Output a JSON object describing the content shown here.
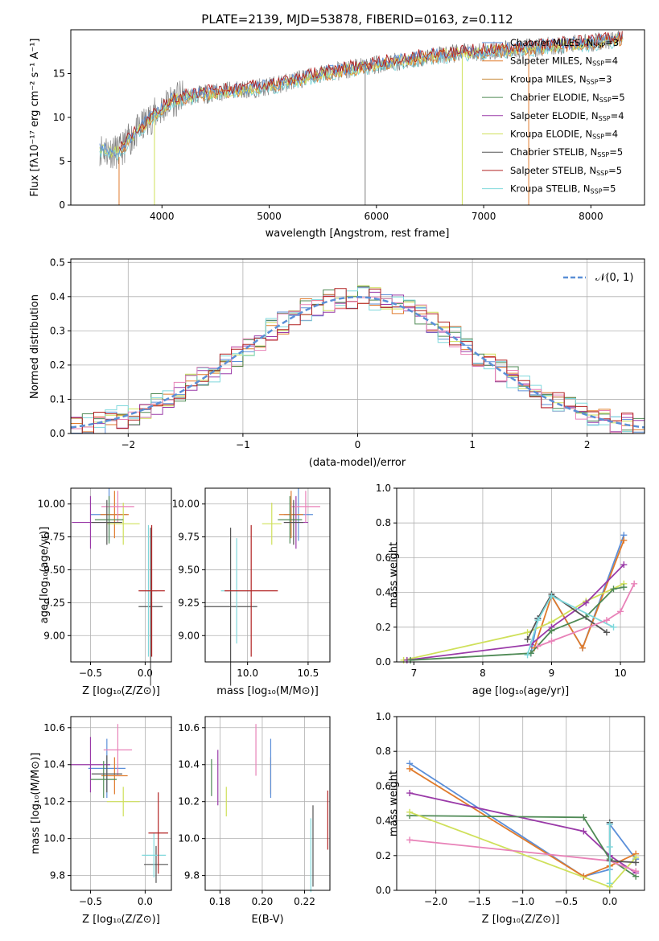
{
  "colors": {
    "chabrier_miles": "#5b8fd9",
    "salpeter_miles": "#e07b2c",
    "kroupa_miles": "#c88a3a",
    "chabrier_elodie": "#4f8a55",
    "salpeter_elodie": "#9a3aa8",
    "kroupa_elodie": "#cfe05a",
    "chabrier_stelib": "#555555",
    "salpeter_stelib": "#b22222",
    "kroupa_stelib": "#7fd8dc",
    "pink": "#e882b8",
    "data_spectrum": "#7f7f7f",
    "normal": "#5a8fd6",
    "grid": "#b0b0b0"
  },
  "chart_data": [
    {
      "type": "line",
      "title": "PLATE=2139, MJD=53878, FIBERID=0163, z=0.112",
      "xlabel": "wavelength [Angstrom, rest frame]",
      "ylabel": "Flux [fλ10⁻¹⁷ erg cm⁻² s⁻¹ A⁻¹]",
      "xlim": [
        3150,
        8500
      ],
      "ylim": [
        0,
        20
      ],
      "xticks": [
        "4000",
        "5000",
        "6000",
        "7000",
        "8000"
      ],
      "yticks": [
        "0",
        "5",
        "10",
        "15"
      ],
      "grid": false,
      "legend_position": "top-right",
      "legend": [
        {
          "label": "Chabrier MILES, N",
          "sub": "SSP",
          "tail": "=3",
          "key": "chabrier_miles"
        },
        {
          "label": "Salpeter MILES, N",
          "sub": "SSP",
          "tail": "=4",
          "key": "salpeter_miles"
        },
        {
          "label": "Kroupa MILES, N",
          "sub": "SSP",
          "tail": "=3",
          "key": "kroupa_miles"
        },
        {
          "label": "Chabrier ELODIE, N",
          "sub": "SSP",
          "tail": "=5",
          "key": "chabrier_elodie"
        },
        {
          "label": "Salpeter ELODIE, N",
          "sub": "SSP",
          "tail": "=4",
          "key": "salpeter_elodie"
        },
        {
          "label": "Kroupa ELODIE, N",
          "sub": "SSP",
          "tail": "=4",
          "key": "kroupa_elodie"
        },
        {
          "label": "Chabrier STELIB, N",
          "sub": "SSP",
          "tail": "=5",
          "key": "chabrier_stelib"
        },
        {
          "label": "Salpeter STELIB, N",
          "sub": "SSP",
          "tail": "=5",
          "key": "salpeter_stelib"
        },
        {
          "label": "Kroupa STELIB, N",
          "sub": "SSP",
          "tail": "=5",
          "key": "kroupa_stelib"
        }
      ],
      "continuum_anchors": [
        [
          3400,
          6.5
        ],
        [
          3600,
          6
        ],
        [
          3700,
          7.5
        ],
        [
          3900,
          10
        ],
        [
          4100,
          12
        ],
        [
          4300,
          12.5
        ],
        [
          4600,
          13
        ],
        [
          5000,
          13.5
        ],
        [
          5500,
          15
        ],
        [
          6000,
          16
        ],
        [
          6500,
          17
        ],
        [
          7000,
          17.5
        ],
        [
          7500,
          18
        ],
        [
          8000,
          18.5
        ],
        [
          8300,
          19
        ]
      ]
    },
    {
      "type": "line",
      "xlabel": "(data-model)/error",
      "ylabel": "Normed distribution",
      "xlim": [
        -2.5,
        2.5
      ],
      "ylim": [
        0,
        0.51
      ],
      "xticks": [
        "−2",
        "−1",
        "0",
        "1",
        "2"
      ],
      "yticks": [
        "0.0",
        "0.1",
        "0.2",
        "0.3",
        "0.4",
        "0.5"
      ],
      "grid": true,
      "legend_position": "top-right",
      "legend": [
        {
          "label": "𝒩(0, 1)",
          "key": "normal"
        }
      ],
      "bin_width": 0.1
    },
    {
      "type": "scatter",
      "xlabel": "Z [log₁₀(Z/Z⊙)]",
      "ylabel": "age  [log₁₀(age/yr)]",
      "xlim": [
        -0.68,
        0.24
      ],
      "ylim": [
        8.8,
        10.12
      ],
      "xticks": [
        "−0.5",
        "0.0"
      ],
      "yticks": [
        "9.00",
        "9.25",
        "9.50",
        "9.75",
        "10.00"
      ],
      "points": [
        {
          "key": "chabrier_miles",
          "x": -0.33,
          "y": 9.92,
          "ex": 0.17,
          "ey": 0.2
        },
        {
          "key": "salpeter_miles",
          "x": -0.28,
          "y": 9.92,
          "ex": 0.13,
          "ey": 0.18
        },
        {
          "key": "salpeter_elodie",
          "x": -0.5,
          "y": 9.86,
          "ex": 0.17,
          "ey": 0.2
        },
        {
          "key": "kroupa_elodie",
          "x": -0.2,
          "y": 9.85,
          "ex": 0.15,
          "ey": 0.16
        },
        {
          "key": "pink",
          "x": -0.25,
          "y": 9.98,
          "ex": 0.15,
          "ey": 0.12
        },
        {
          "key": "chabrier_elodie",
          "x": -0.33,
          "y": 9.88,
          "ex": 0.13,
          "ey": 0.18
        },
        {
          "key": "chabrier_stelib",
          "x": -0.35,
          "y": 9.86,
          "ex": 0.14,
          "ey": 0.17
        },
        {
          "key": "chabrier_stelib",
          "x": 0.05,
          "y": 9.22,
          "ex": 0.11,
          "ey": 0.6
        },
        {
          "key": "kroupa_stelib",
          "x": 0.03,
          "y": 9.34,
          "ex": 0.08,
          "ey": 0.5
        },
        {
          "key": "salpeter_stelib",
          "x": 0.06,
          "y": 9.34,
          "ex": 0.12,
          "ey": 0.5
        }
      ]
    },
    {
      "type": "scatter",
      "xlabel": "mass [log₁₀(M/M⊙)]",
      "ylabel": "",
      "xlim": [
        9.65,
        10.68
      ],
      "ylim": [
        8.8,
        10.12
      ],
      "xticks": [
        "10.0",
        "10.5"
      ],
      "yticks": [
        "9.00",
        "9.25",
        "9.50",
        "9.75",
        "10.00"
      ],
      "points": [
        {
          "key": "chabrier_miles",
          "x": 10.42,
          "y": 9.92,
          "ex": 0.12,
          "ey": 0.2
        },
        {
          "key": "salpeter_miles",
          "x": 10.36,
          "y": 9.92,
          "ex": 0.1,
          "ey": 0.18
        },
        {
          "key": "salpeter_elodie",
          "x": 10.4,
          "y": 9.86,
          "ex": 0.1,
          "ey": 0.2
        },
        {
          "key": "kroupa_elodie",
          "x": 10.2,
          "y": 9.85,
          "ex": 0.08,
          "ey": 0.16
        },
        {
          "key": "pink",
          "x": 10.48,
          "y": 9.98,
          "ex": 0.12,
          "ey": 0.12
        },
        {
          "key": "chabrier_elodie",
          "x": 10.35,
          "y": 9.88,
          "ex": 0.1,
          "ey": 0.18
        },
        {
          "key": "chabrier_stelib",
          "x": 10.38,
          "y": 9.86,
          "ex": 0.08,
          "ey": 0.17
        },
        {
          "key": "chabrier_stelib",
          "x": 9.86,
          "y": 9.22,
          "ex": 0.22,
          "ey": 0.6
        },
        {
          "key": "kroupa_stelib",
          "x": 9.91,
          "y": 9.34,
          "ex": 0.13,
          "ey": 0.4
        },
        {
          "key": "salpeter_stelib",
          "x": 10.03,
          "y": 9.34,
          "ex": 0.22,
          "ey": 0.5
        }
      ]
    },
    {
      "type": "line",
      "xlabel": "age  [log₁₀(age/yr)]",
      "ylabel": "mass weight",
      "xlim": [
        6.75,
        10.35
      ],
      "ylim": [
        0,
        1
      ],
      "xticks": [
        "7",
        "8",
        "9",
        "10"
      ],
      "yticks": [
        "0.0",
        "0.2",
        "0.4",
        "0.6",
        "0.8",
        "1.0"
      ],
      "grid": true,
      "series": [
        {
          "key": "chabrier_miles",
          "x": [
            8.7,
            8.8,
            9.0,
            9.45,
            10.05
          ],
          "y": [
            0.05,
            0.25,
            0.38,
            0.08,
            0.73
          ]
        },
        {
          "key": "salpeter_miles",
          "x": [
            8.75,
            9.0,
            9.45,
            10.05
          ],
          "y": [
            0.08,
            0.38,
            0.08,
            0.7
          ]
        },
        {
          "key": "kroupa_elodie",
          "x": [
            6.85,
            8.65,
            9.0,
            9.5,
            10.05
          ],
          "y": [
            0.01,
            0.17,
            0.23,
            0.35,
            0.45
          ]
        },
        {
          "key": "salpeter_elodie",
          "x": [
            6.9,
            8.7,
            9.0,
            9.5,
            10.05
          ],
          "y": [
            0.01,
            0.1,
            0.2,
            0.34,
            0.56
          ]
        },
        {
          "key": "chabrier_elodie",
          "x": [
            6.95,
            8.7,
            9.0,
            9.5,
            9.9,
            10.05
          ],
          "y": [
            0.01,
            0.05,
            0.18,
            0.26,
            0.42,
            0.43
          ]
        },
        {
          "key": "chabrier_stelib",
          "x": [
            8.65,
            8.8,
            9.0,
            9.8
          ],
          "y": [
            0.13,
            0.25,
            0.39,
            0.17
          ]
        },
        {
          "key": "kroupa_stelib",
          "x": [
            8.65,
            8.8,
            9.0,
            9.9
          ],
          "y": [
            0.04,
            0.24,
            0.38,
            0.2
          ]
        },
        {
          "key": "pink",
          "x": [
            8.8,
            9.0,
            9.8,
            10.0,
            10.2
          ],
          "y": [
            0.09,
            0.12,
            0.24,
            0.29,
            0.45
          ]
        }
      ]
    },
    {
      "type": "scatter",
      "xlabel": "Z [log₁₀(Z/Z⊙)]",
      "ylabel": "mass [log₁₀(M/M⊙)]",
      "xlim": [
        -0.68,
        0.24
      ],
      "ylim": [
        9.72,
        10.66
      ],
      "xticks": [
        "−0.5",
        "0.0"
      ],
      "yticks": [
        "9.8",
        "10.0",
        "10.2",
        "10.4",
        "10.6"
      ],
      "points": [
        {
          "key": "chabrier_miles",
          "x": -0.35,
          "y": 10.38,
          "ex": 0.17,
          "ey": 0.16
        },
        {
          "key": "salpeter_miles",
          "x": -0.28,
          "y": 10.34,
          "ex": 0.12,
          "ey": 0.1
        },
        {
          "key": "salpeter_elodie",
          "x": -0.5,
          "y": 10.4,
          "ex": 0.18,
          "ey": 0.15
        },
        {
          "key": "kroupa_elodie",
          "x": -0.2,
          "y": 10.2,
          "ex": 0.15,
          "ey": 0.08
        },
        {
          "key": "pink",
          "x": -0.25,
          "y": 10.48,
          "ex": 0.13,
          "ey": 0.14
        },
        {
          "key": "chabrier_elodie",
          "x": -0.38,
          "y": 10.32,
          "ex": 0.12,
          "ey": 0.1
        },
        {
          "key": "chabrier_stelib",
          "x": -0.35,
          "y": 10.35,
          "ex": 0.14,
          "ey": 0.1
        },
        {
          "key": "chabrier_stelib",
          "x": 0.1,
          "y": 9.86,
          "ex": 0.11,
          "ey": 0.1
        },
        {
          "key": "kroupa_stelib",
          "x": 0.08,
          "y": 9.91,
          "ex": 0.11,
          "ey": 0.12
        },
        {
          "key": "salpeter_stelib",
          "x": 0.12,
          "y": 10.03,
          "ex": 0.09,
          "ey": 0.22
        }
      ]
    },
    {
      "type": "scatter",
      "xlabel": "E(B-V)",
      "ylabel": "",
      "xlim": [
        0.173,
        0.232
      ],
      "ylim": [
        9.72,
        10.66
      ],
      "xticks": [
        "0.18",
        "0.20",
        "0.22"
      ],
      "yticks": [
        "9.8",
        "10.0",
        "10.2",
        "10.4",
        "10.6"
      ],
      "points": [
        {
          "key": "chabrier_elodie",
          "x": 0.176,
          "y": 10.33,
          "ey": 0.1
        },
        {
          "key": "salpeter_elodie",
          "x": 0.179,
          "y": 10.33,
          "ey": 0.15
        },
        {
          "key": "kroupa_elodie",
          "x": 0.183,
          "y": 10.2,
          "ey": 0.08
        },
        {
          "key": "pink",
          "x": 0.197,
          "y": 10.48,
          "ey": 0.14
        },
        {
          "key": "salpeter_miles",
          "x": 0.204,
          "y": 10.34,
          "ey": 0.1
        },
        {
          "key": "chabrier_miles",
          "x": 0.204,
          "y": 10.38,
          "ey": 0.16
        },
        {
          "key": "kroupa_stelib",
          "x": 0.223,
          "y": 9.91,
          "ey": 0.2
        },
        {
          "key": "chabrier_stelib",
          "x": 0.224,
          "y": 9.96,
          "ey": 0.22
        },
        {
          "key": "salpeter_stelib",
          "x": 0.231,
          "y": 10.1,
          "ey": 0.16
        }
      ]
    },
    {
      "type": "line",
      "xlabel": "Z [log₁₀(Z/Z⊙)]",
      "ylabel": "mass weight",
      "xlim": [
        -2.45,
        0.4
      ],
      "ylim": [
        0,
        1
      ],
      "xticks": [
        "−2.0",
        "−1.5",
        "−1.0",
        "−0.5",
        "0.0"
      ],
      "yticks": [
        "0.0",
        "0.2",
        "0.4",
        "0.6",
        "0.8",
        "1.0"
      ],
      "grid": true,
      "series": [
        {
          "key": "chabrier_miles",
          "x": [
            -2.3,
            -0.3,
            0.0,
            0.0,
            0.3
          ],
          "y": [
            0.73,
            0.08,
            0.12,
            0.38,
            0.18
          ]
        },
        {
          "key": "salpeter_miles",
          "x": [
            -2.3,
            -0.3,
            0.0,
            0.3
          ],
          "y": [
            0.7,
            0.08,
            0.14,
            0.21
          ]
        },
        {
          "key": "salpeter_elodie",
          "x": [
            -2.3,
            -0.3,
            0.0,
            0.3
          ],
          "y": [
            0.56,
            0.34,
            0.2,
            0.1
          ]
        },
        {
          "key": "chabrier_elodie",
          "x": [
            -2.3,
            -0.3,
            0.0,
            0.3
          ],
          "y": [
            0.43,
            0.42,
            0.18,
            0.08
          ]
        },
        {
          "key": "kroupa_elodie",
          "x": [
            -2.3,
            0.0,
            0.3
          ],
          "y": [
            0.45,
            0.02,
            0.19
          ]
        },
        {
          "key": "pink",
          "x": [
            -2.3,
            0.0,
            0.3
          ],
          "y": [
            0.29,
            0.17,
            0.11
          ]
        },
        {
          "key": "chabrier_stelib",
          "x": [
            0.0,
            0.0,
            0.3
          ],
          "y": [
            0.39,
            0.17,
            0.16
          ]
        },
        {
          "key": "kroupa_stelib",
          "x": [
            0.0,
            0.0,
            0.0
          ],
          "y": [
            0.04,
            0.25,
            0.38
          ]
        }
      ]
    }
  ]
}
